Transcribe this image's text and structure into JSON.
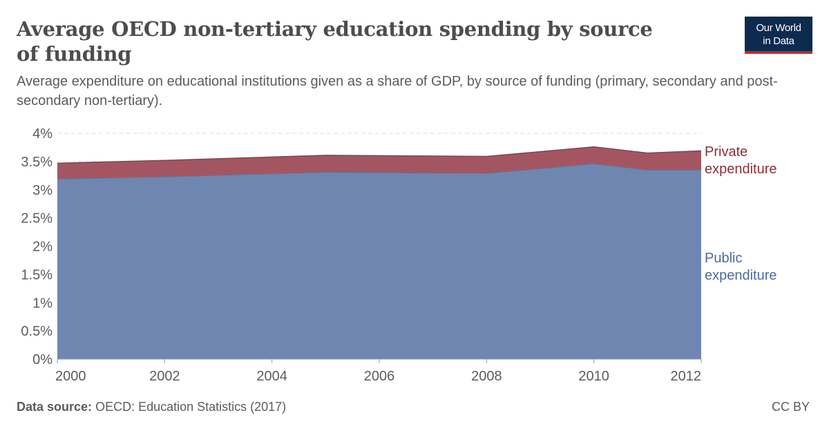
{
  "header": {
    "title": "Average OECD non-tertiary education spending by source of funding",
    "subtitle": "Average expenditure on educational institutions given as a share of GDP, by source of funding (primary, secondary and post-secondary non-tertiary).",
    "logo_line1": "Our World",
    "logo_line2": "in Data"
  },
  "footer": {
    "source_label": "Data source:",
    "source_text": "OECD: Education Statistics (2017)",
    "license": "CC BY"
  },
  "colors": {
    "public": "#6f87b0",
    "private": "#a35661",
    "private_label": "#883039",
    "public_label": "#4c6a9c",
    "logo_bg": "#0d2a4f",
    "logo_accent": "#ce261e"
  },
  "chart_data": {
    "type": "area",
    "stacked": true,
    "x": [
      2000,
      2002,
      2005,
      2008,
      2010,
      2011,
      2012
    ],
    "series": [
      {
        "name": "Public expenditure",
        "label_lines": [
          "Public",
          "expenditure"
        ],
        "values": [
          3.19,
          3.23,
          3.31,
          3.29,
          3.46,
          3.35,
          3.35
        ]
      },
      {
        "name": "Private expenditure",
        "label_lines": [
          "Private",
          "expenditure"
        ],
        "values": [
          0.28,
          0.29,
          0.3,
          0.3,
          0.3,
          0.3,
          0.34
        ]
      }
    ],
    "xlim": [
      2000,
      2012
    ],
    "ylim": [
      0,
      4
    ],
    "x_ticks": [
      "2000",
      "2002",
      "2004",
      "2006",
      "2008",
      "2010",
      "2012"
    ],
    "y_ticks": [
      "0%",
      "0.5%",
      "1%",
      "1.5%",
      "2%",
      "2.5%",
      "3%",
      "3.5%",
      "4%"
    ],
    "grid": "horizontal-dashed",
    "legend": "right-inline"
  }
}
